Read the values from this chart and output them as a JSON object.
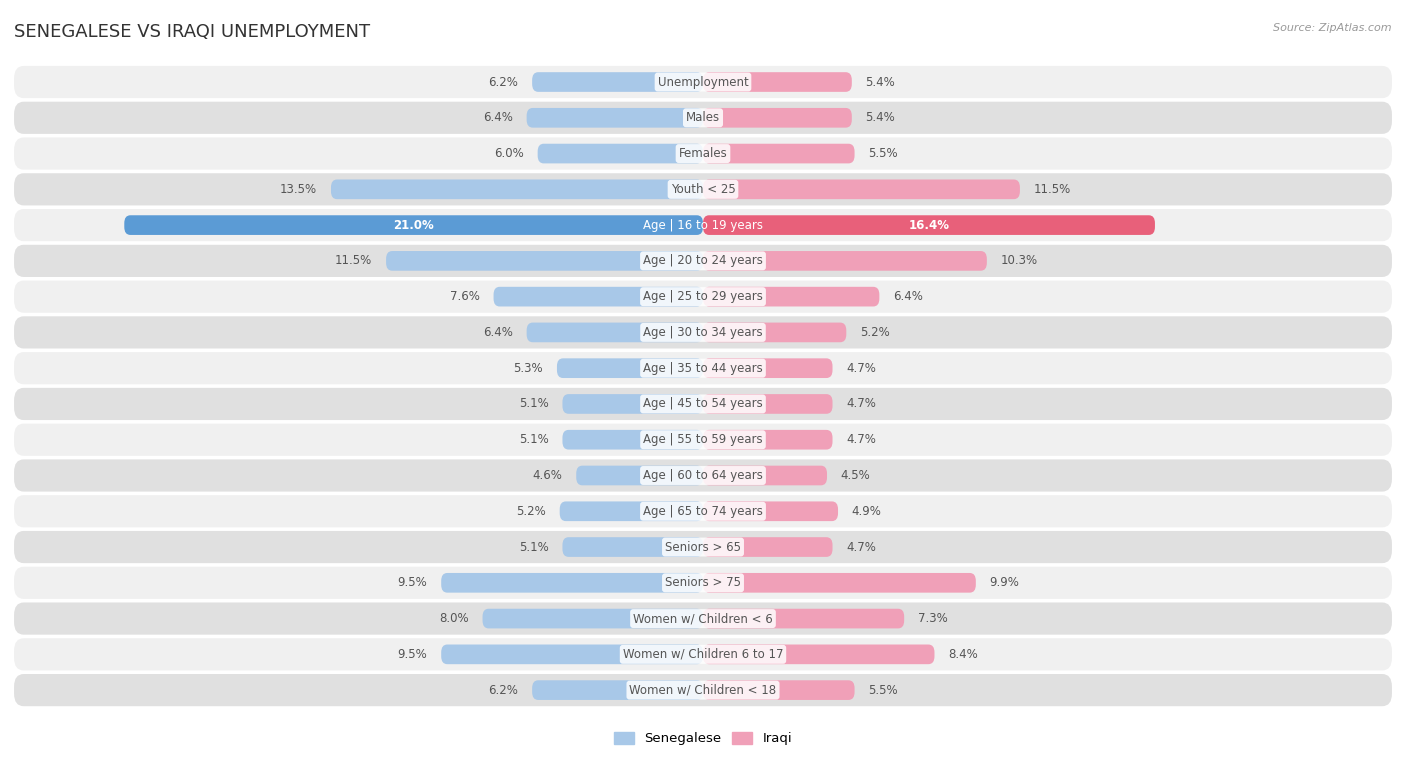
{
  "title": "SENEGALESE VS IRAQI UNEMPLOYMENT",
  "source": "Source: ZipAtlas.com",
  "categories": [
    "Unemployment",
    "Males",
    "Females",
    "Youth < 25",
    "Age | 16 to 19 years",
    "Age | 20 to 24 years",
    "Age | 25 to 29 years",
    "Age | 30 to 34 years",
    "Age | 35 to 44 years",
    "Age | 45 to 54 years",
    "Age | 55 to 59 years",
    "Age | 60 to 64 years",
    "Age | 65 to 74 years",
    "Seniors > 65",
    "Seniors > 75",
    "Women w/ Children < 6",
    "Women w/ Children 6 to 17",
    "Women w/ Children < 18"
  ],
  "senegalese": [
    6.2,
    6.4,
    6.0,
    13.5,
    21.0,
    11.5,
    7.6,
    6.4,
    5.3,
    5.1,
    5.1,
    4.6,
    5.2,
    5.1,
    9.5,
    8.0,
    9.5,
    6.2
  ],
  "iraqi": [
    5.4,
    5.4,
    5.5,
    11.5,
    16.4,
    10.3,
    6.4,
    5.2,
    4.7,
    4.7,
    4.7,
    4.5,
    4.9,
    4.7,
    9.9,
    7.3,
    8.4,
    5.5
  ],
  "senegalese_color": "#a8c8e8",
  "iraqi_color": "#f0a0b8",
  "highlight_senegalese_color": "#5b9bd5",
  "highlight_iraqi_color": "#e8607a",
  "highlight_rows": [
    4
  ],
  "bar_height": 0.55,
  "max_value": 25.0,
  "bg_color_light": "#f0f0f0",
  "bg_color_dark": "#e0e0e0",
  "label_color": "#555555",
  "highlight_label_color": "#ffffff",
  "value_label_color": "#555555",
  "axis_label_color": "#888888",
  "title_color": "#333333",
  "source_color": "#999999"
}
